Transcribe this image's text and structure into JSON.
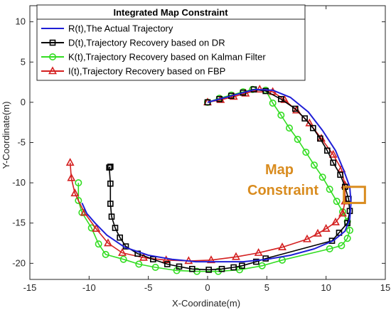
{
  "chart_data": {
    "type": "line",
    "title": "Integrated Map Constraint",
    "xlabel": "X-Coordinate(m)",
    "ylabel": "Y-Coordinate(m)",
    "xlim": [
      -15,
      15
    ],
    "ylim": [
      -22,
      12
    ],
    "xticks": [
      -15,
      -10,
      -5,
      0,
      5,
      10,
      15
    ],
    "yticks": [
      -20,
      -15,
      -10,
      -5,
      0,
      5,
      10
    ],
    "grid": false,
    "legend_position": "top-left",
    "annotation": {
      "lines": [
        "Map",
        "Constraint"
      ],
      "color": "#D98C1F",
      "box": {
        "x": [
          11.5,
          12.2
        ],
        "y": [
          -12.5,
          -10.5
        ]
      }
    },
    "series": [
      {
        "name": "R(t),The Actual Trajectory",
        "color": "#1F1FD6",
        "marker": "none",
        "x": [
          0,
          2,
          4,
          5.5,
          7,
          8.5,
          9.7,
          10.8,
          11.5,
          12,
          12.1,
          12,
          11.6,
          10.6,
          9,
          7,
          5,
          3,
          1,
          -1,
          -3,
          -5,
          -7,
          -8.5,
          -9.5,
          -10.2,
          -10.6
        ],
        "y": [
          0,
          0.8,
          1.6,
          1.5,
          0.6,
          -1.2,
          -3.5,
          -6,
          -8.5,
          -10.5,
          -12.5,
          -14.5,
          -16,
          -17.2,
          -18.2,
          -19,
          -19.5,
          -19.8,
          -19.8,
          -19.8,
          -19.5,
          -19,
          -18,
          -16.5,
          -15,
          -13.8,
          -12.5
        ]
      },
      {
        "name": "D(t),Trajectory Recovery based on DR",
        "color": "#000000",
        "marker": "square",
        "x": [
          0,
          1,
          2,
          3,
          3.9,
          4.9,
          6.2,
          7.4,
          8.2,
          8.9,
          9.5,
          10.1,
          10.6,
          11.2,
          11.6,
          11.9,
          12.0,
          11.8,
          11.1,
          10.5,
          4.9,
          4.1,
          2.9,
          2.2,
          1.2,
          0.1,
          -1.3,
          -2.4,
          -3.4,
          -4.6,
          -5.9,
          -6.9,
          -7.4,
          -7.8,
          -8.1,
          -8.2,
          -8.2,
          -8.3,
          -8.2
        ],
        "y": [
          0,
          0.4,
          0.8,
          1.2,
          1.6,
          1.4,
          0.4,
          -0.8,
          -2,
          -3.2,
          -4.5,
          -6,
          -7.5,
          -9,
          -10.5,
          -12,
          -13.5,
          -15,
          -16.2,
          -17.2,
          -19.4,
          -19.8,
          -20.3,
          -20.5,
          -20.7,
          -20.8,
          -20.7,
          -20.4,
          -20.1,
          -19.5,
          -18.8,
          -17.9,
          -16.8,
          -15.6,
          -14.2,
          -12.6,
          -10.1,
          -8.1,
          -8
        ]
      },
      {
        "name": "K(t),Trajectory Recovery based on Kalman Filter",
        "color": "#33DD22",
        "marker": "circle",
        "x": [
          0,
          1,
          2,
          3,
          3.8,
          4.9,
          5.5,
          6.2,
          6.9,
          7.6,
          8.3,
          9,
          9.7,
          10.3,
          10.9,
          11.4,
          11.8,
          12.0,
          11.8,
          11.3,
          10.3,
          6.3,
          4.6,
          2.7,
          0.9,
          -0.9,
          -2.6,
          -4.4,
          -5.8,
          -7.1,
          -8.6,
          -9.2,
          -9.8,
          -10.6,
          -10.9,
          -10.9
        ],
        "y": [
          0,
          0.5,
          0.9,
          1.3,
          1.6,
          1.5,
          -0.1,
          -1.6,
          -3.2,
          -4.6,
          -6.2,
          -7.8,
          -9.3,
          -10.8,
          -12.3,
          -13.6,
          -14.8,
          -15.9,
          -16.9,
          -17.8,
          -18.2,
          -19.6,
          -20.3,
          -20.8,
          -21,
          -21,
          -20.9,
          -20.5,
          -20.1,
          -19.5,
          -18.9,
          -17.6,
          -15.6,
          -13.7,
          -12.2,
          -10
        ]
      },
      {
        "name": "I(t),Trajectory Recovery based on FBP",
        "color": "#D42020",
        "marker": "triangle",
        "x": [
          0,
          1.1,
          2.2,
          3.2,
          4.4,
          5.5,
          6.5,
          7.5,
          8.6,
          9.6,
          10.6,
          11.3,
          11.6,
          11.6,
          11.4,
          10.8,
          10.0,
          9.3,
          8.4,
          6.3,
          4.3,
          2.4,
          0.3,
          -1.6,
          -3.5,
          -5.4,
          -7.2,
          -8.4,
          -9.4,
          -10.4,
          -11.2,
          -11.5,
          -11.6
        ],
        "y": [
          0,
          0.3,
          0.7,
          1.1,
          1.6,
          1.3,
          0.3,
          -1,
          -2.6,
          -4.5,
          -6.5,
          -8.3,
          -10.3,
          -12.3,
          -13.8,
          -14.9,
          -15.7,
          -16.3,
          -17,
          -18,
          -18.7,
          -19.2,
          -19.6,
          -19.7,
          -19.6,
          -19.3,
          -18.7,
          -17.5,
          -15.7,
          -13.7,
          -11.3,
          -9.4,
          -7.5
        ]
      }
    ]
  }
}
